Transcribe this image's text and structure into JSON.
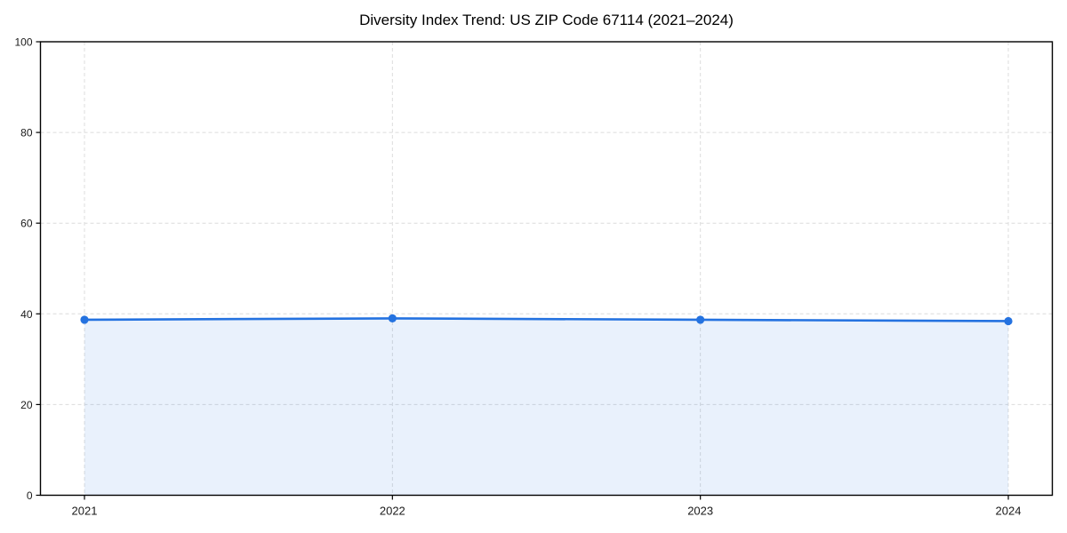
{
  "chart_data": {
    "type": "area",
    "title": "Diversity Index Trend: US ZIP Code 67114 (2021–2024)",
    "categories": [
      "2021",
      "2022",
      "2023",
      "2024"
    ],
    "values": [
      38.7,
      39.0,
      38.7,
      38.4
    ],
    "xlabel": "",
    "ylabel": "",
    "ylim": [
      0,
      100
    ],
    "yticks": [
      0,
      20,
      40,
      60,
      80,
      100
    ],
    "grid": true,
    "grid_style": "dashed",
    "legend": false,
    "marker": "circle",
    "colors": {
      "line": "#2472e0",
      "marker": "#2472e0",
      "area": "#2472e0",
      "area_opacity": 0.1,
      "grid": "#dcdcdc",
      "spine": "#000000",
      "tick": "#000000",
      "tick_label": "#1a1a1a",
      "title": "#000000",
      "background": "#ffffff"
    }
  }
}
